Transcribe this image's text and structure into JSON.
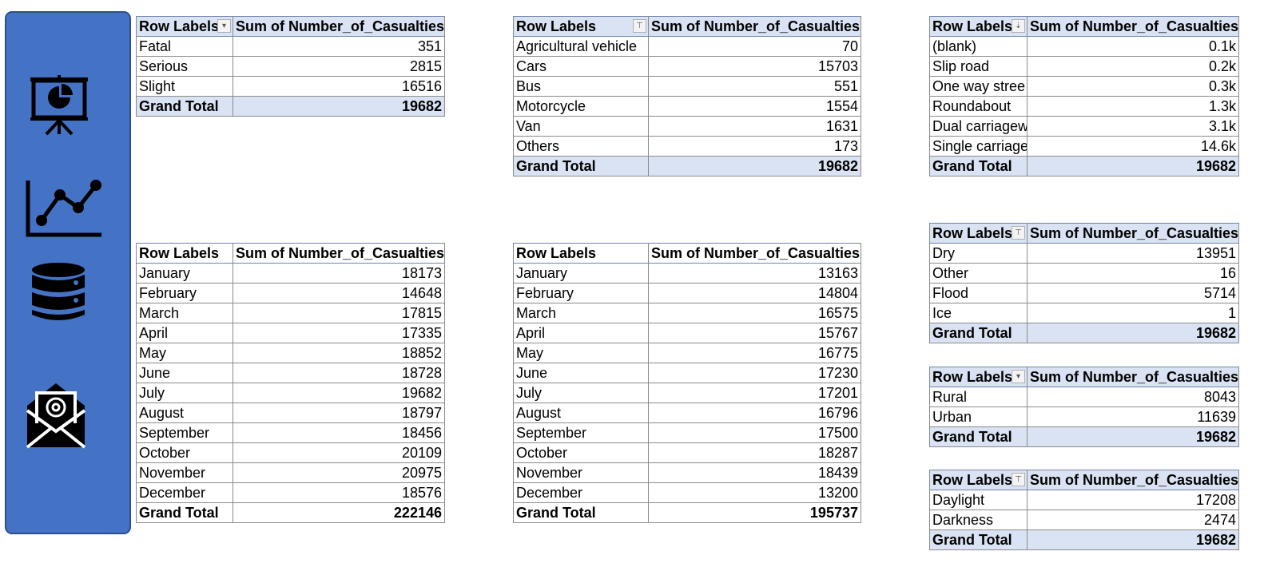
{
  "sidebar": {
    "icons": [
      "presentation-chart-icon",
      "line-chart-icon",
      "database-icon",
      "email-icon"
    ],
    "background": "#4472c4"
  },
  "colors": {
    "header_fill": "#dae3f3",
    "border": "#8a8a8a"
  },
  "pivots": {
    "severity": {
      "header": [
        "Row Labels",
        "Sum of Number_of_Casualties"
      ],
      "rows": [
        [
          "Fatal",
          "351"
        ],
        [
          "Serious",
          "2815"
        ],
        [
          "Slight",
          "16516"
        ]
      ],
      "total": [
        "Grand Total",
        "19682"
      ]
    },
    "vehicle": {
      "header": [
        "Row Labels",
        "Sum of Number_of_Casualties"
      ],
      "rows": [
        [
          "Agricultural vehicle",
          "70"
        ],
        [
          "Cars",
          "15703"
        ],
        [
          "Bus",
          "551"
        ],
        [
          "Motorcycle",
          "1554"
        ],
        [
          "Van",
          "1631"
        ],
        [
          "Others",
          "173"
        ]
      ],
      "total": [
        "Grand Total",
        "19682"
      ]
    },
    "road_type": {
      "header": [
        "Row Labels",
        "Sum of Number_of_Casualties"
      ],
      "rows": [
        [
          "(blank)",
          "0.1k"
        ],
        [
          "Slip road",
          "0.2k"
        ],
        [
          "One way stree",
          "0.3k"
        ],
        [
          "Roundabout",
          "1.3k"
        ],
        [
          "Dual carriagew",
          "3.1k"
        ],
        [
          "Single carriage",
          "14.6k"
        ]
      ],
      "total": [
        "Grand Total",
        "19682"
      ]
    },
    "month_a": {
      "header": [
        "Row Labels",
        "Sum of Number_of_Casualties"
      ],
      "rows": [
        [
          "January",
          "18173"
        ],
        [
          "February",
          "14648"
        ],
        [
          "March",
          "17815"
        ],
        [
          "April",
          "17335"
        ],
        [
          "May",
          "18852"
        ],
        [
          "June",
          "18728"
        ],
        [
          "July",
          "19682"
        ],
        [
          "August",
          "18797"
        ],
        [
          "September",
          "18456"
        ],
        [
          "October",
          "20109"
        ],
        [
          "November",
          "20975"
        ],
        [
          "December",
          "18576"
        ]
      ],
      "total": [
        "Grand Total",
        "222146"
      ]
    },
    "month_b": {
      "header": [
        "Row Labels",
        "Sum of Number_of_Casualties"
      ],
      "rows": [
        [
          "January",
          "13163"
        ],
        [
          "February",
          "14804"
        ],
        [
          "March",
          "16575"
        ],
        [
          "April",
          "15767"
        ],
        [
          "May",
          "16775"
        ],
        [
          "June",
          "17230"
        ],
        [
          "July",
          "17201"
        ],
        [
          "August",
          "16796"
        ],
        [
          "September",
          "17500"
        ],
        [
          "October",
          "18287"
        ],
        [
          "November",
          "18439"
        ],
        [
          "December",
          "13200"
        ]
      ],
      "total": [
        "Grand Total",
        "195737"
      ]
    },
    "road_surface": {
      "header": [
        "Row Labels",
        "Sum of Number_of_Casualties"
      ],
      "rows": [
        [
          "Dry",
          "13951"
        ],
        [
          "Other",
          "16"
        ],
        [
          "Flood",
          "5714"
        ],
        [
          "Ice",
          "1"
        ]
      ],
      "total": [
        "Grand Total",
        "19682"
      ]
    },
    "area": {
      "header": [
        "Row Labels",
        "Sum of Number_of_Casualties"
      ],
      "rows": [
        [
          "Rural",
          "8043"
        ],
        [
          "Urban",
          "11639"
        ]
      ],
      "total": [
        "Grand Total",
        "19682"
      ]
    },
    "light": {
      "header": [
        "Row Labels",
        "Sum of Number_of_Casualties"
      ],
      "rows": [
        [
          "Daylight",
          "17208"
        ],
        [
          "Darkness",
          "2474"
        ]
      ],
      "total": [
        "Grand Total",
        "19682"
      ]
    }
  }
}
